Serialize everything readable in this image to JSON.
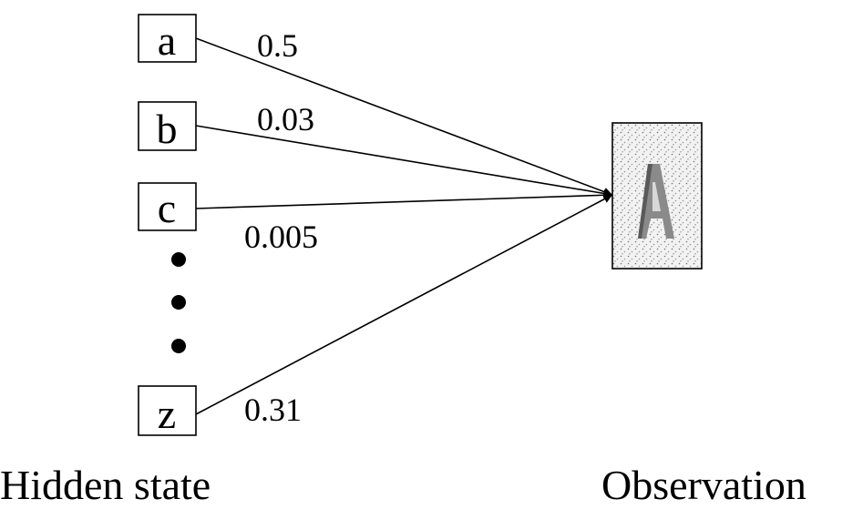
{
  "nodes": [
    {
      "label": "a"
    },
    {
      "label": "b"
    },
    {
      "label": "c"
    },
    {
      "label": "z"
    }
  ],
  "edges": [
    {
      "label": "0.5"
    },
    {
      "label": "0.03"
    },
    {
      "label": "0.005"
    },
    {
      "label": "0.31"
    }
  ],
  "captions": {
    "hidden": "Hidden state",
    "observation": "Observation"
  }
}
